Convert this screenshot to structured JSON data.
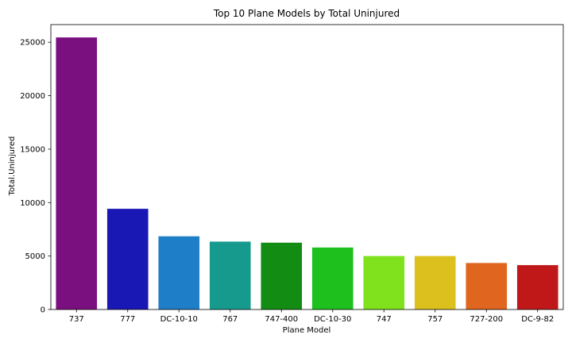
{
  "chart_data": {
    "type": "bar",
    "title": "Top 10 Plane Models by Total Uninjured",
    "xlabel": "Plane Model",
    "ylabel": "Total.Uninjured",
    "categories": [
      "737",
      "777",
      "DC-10-10",
      "767",
      "747-400",
      "DC-10-30",
      "747",
      "757",
      "727-200",
      "DC-9-82"
    ],
    "values": [
      25450,
      9420,
      6850,
      6350,
      6250,
      5800,
      5000,
      5000,
      4350,
      4150
    ],
    "colors": [
      "#7a0f80",
      "#1a18b5",
      "#1e7fc8",
      "#169a8e",
      "#138c14",
      "#1dc01d",
      "#80e21c",
      "#dcc11e",
      "#e0651e",
      "#c01818"
    ],
    "ylim": [
      0,
      26650
    ],
    "yticks": [
      0,
      5000,
      10000,
      15000,
      20000,
      25000
    ],
    "grid": false,
    "legend": "none"
  }
}
